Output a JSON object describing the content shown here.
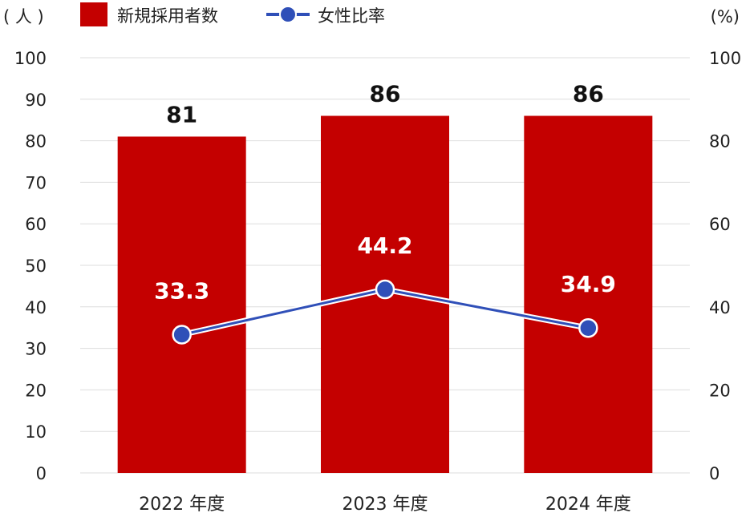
{
  "colors": {
    "bar": "#c40000",
    "line": "#2f4fb8",
    "grid": "#dddddd",
    "text": "#222222"
  },
  "chart_data": {
    "type": "bar",
    "categories": [
      "2022 年度",
      "2023 年度",
      "2024 年度"
    ],
    "series": [
      {
        "name": "新規採用者数",
        "type": "bar",
        "axis": "left",
        "values": [
          81,
          86,
          86
        ],
        "data_labels": [
          "81",
          "86",
          "86"
        ]
      },
      {
        "name": "女性比率",
        "type": "line",
        "axis": "right",
        "values": [
          33.3,
          44.2,
          34.9
        ],
        "data_labels": [
          "33.3",
          "44.2",
          "34.9"
        ]
      }
    ],
    "y_left": {
      "unit_label": "( 人 )",
      "range": [
        0,
        100
      ],
      "ticks": [
        0,
        10,
        20,
        30,
        40,
        50,
        60,
        70,
        80,
        90,
        100
      ]
    },
    "y_right": {
      "unit_label": "(%)",
      "range": [
        0,
        100
      ],
      "ticks": [
        0,
        20,
        40,
        60,
        80,
        100
      ]
    },
    "legend": {
      "placement": "top-left",
      "items": [
        "新規採用者数",
        "女性比率"
      ]
    },
    "grid": true
  }
}
